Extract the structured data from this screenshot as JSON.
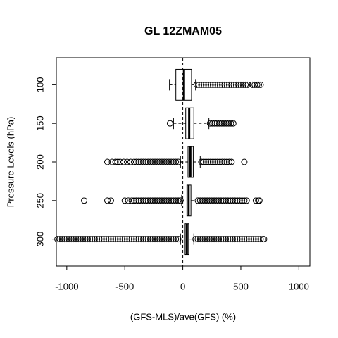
{
  "chart_data": {
    "type": "boxplot",
    "orientation": "horizontal",
    "title": "GL 12ZMAM05",
    "x_label": "(GFS-MLS)/ave(GFS) (%)",
    "y_label": "Pressure Levels (hPa)",
    "categories": [
      "100",
      "150",
      "200",
      "250",
      "300"
    ],
    "xlim": [
      -1090,
      1095
    ],
    "xticks": [
      -1000,
      -500,
      0,
      500,
      1000
    ],
    "vline": 0,
    "color": "#000000",
    "boxes": [
      {
        "whislo": -115,
        "q1": -60,
        "med": 10,
        "q3": 75,
        "whishi": 110,
        "outliers": [
          120,
          140,
          160,
          180,
          200,
          220,
          240,
          260,
          280,
          300,
          320,
          340,
          360,
          380,
          400,
          420,
          440,
          460,
          480,
          500,
          520,
          540,
          560,
          600,
          620,
          640,
          655,
          670
        ]
      },
      {
        "whislo": -80,
        "q1": 25,
        "med": 55,
        "q3": 95,
        "whishi": 225,
        "outliers": [
          -110,
          235,
          255,
          275,
          295,
          315,
          335,
          355,
          375,
          395,
          415,
          435
        ]
      },
      {
        "whislo": -20,
        "q1": 45,
        "med": 65,
        "q3": 90,
        "whishi": 150,
        "outliers": [
          -650,
          -610,
          -580,
          -560,
          -540,
          -510,
          -480,
          -450,
          -420,
          -400,
          -380,
          -360,
          -340,
          -320,
          -300,
          -280,
          -260,
          -240,
          -220,
          -200,
          -180,
          -160,
          -140,
          -120,
          -100,
          -80,
          -60,
          -40,
          160,
          180,
          200,
          220,
          240,
          260,
          280,
          300,
          320,
          340,
          360,
          380,
          400,
          420,
          530
        ]
      },
      {
        "whislo": -10,
        "q1": 35,
        "med": 50,
        "q3": 70,
        "whishi": 115,
        "outliers": [
          -850,
          -650,
          -620,
          -500,
          -470,
          -440,
          -420,
          -400,
          -380,
          -360,
          -340,
          -320,
          -300,
          -280,
          -260,
          -240,
          -220,
          -200,
          -180,
          -160,
          -140,
          -120,
          -100,
          -80,
          -60,
          -40,
          -20,
          130,
          150,
          170,
          190,
          210,
          230,
          250,
          270,
          290,
          310,
          330,
          350,
          370,
          390,
          410,
          430,
          450,
          470,
          490,
          510,
          530,
          550,
          630,
          650,
          660
        ]
      },
      {
        "whislo": -20,
        "q1": 20,
        "med": 35,
        "q3": 50,
        "whishi": 95,
        "outliers": [
          -1080,
          -1060,
          -1040,
          -1020,
          -1000,
          -980,
          -960,
          -940,
          -920,
          -900,
          -880,
          -860,
          -840,
          -820,
          -800,
          -780,
          -760,
          -740,
          -720,
          -700,
          -680,
          -660,
          -640,
          -620,
          -600,
          -580,
          -560,
          -540,
          -520,
          -500,
          -480,
          -460,
          -440,
          -420,
          -400,
          -380,
          -360,
          -340,
          -320,
          -300,
          -280,
          -260,
          -240,
          -220,
          -200,
          -180,
          -160,
          -140,
          -120,
          -100,
          -80,
          -60,
          -40,
          110,
          130,
          150,
          170,
          190,
          210,
          230,
          250,
          270,
          290,
          310,
          330,
          350,
          370,
          390,
          410,
          430,
          450,
          470,
          490,
          510,
          530,
          550,
          570,
          590,
          610,
          630,
          650,
          670,
          690,
          700
        ]
      }
    ]
  }
}
